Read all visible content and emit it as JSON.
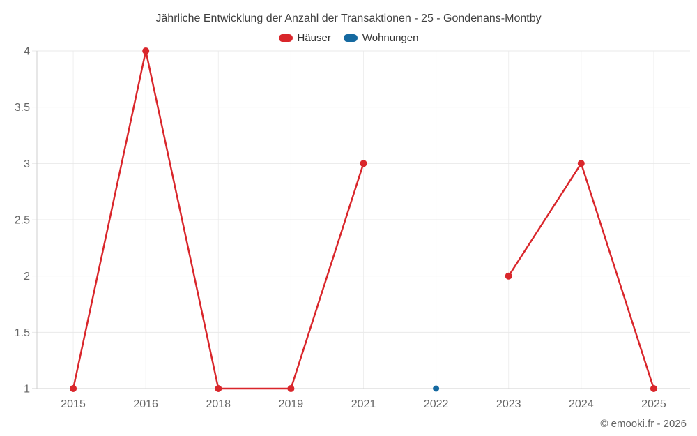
{
  "title": "Jährliche Entwicklung der Anzahl der Transaktionen - 25 - Gondenans-Montby",
  "legend": {
    "items": [
      {
        "label": "Häuser",
        "color": "#d9262b"
      },
      {
        "label": "Wohnungen",
        "color": "#1569a0"
      }
    ]
  },
  "copyright": "© emooki.fr - 2026",
  "colors": {
    "grid": "#e9e9e9",
    "grid_vertical": "#efefef",
    "axis": "#cfcfcf",
    "tick_label": "#666666",
    "title": "#3f3f3f",
    "legend_text": "#333333",
    "background": "#ffffff",
    "series_haeuser": "#d9262b",
    "series_wohnungen": "#1569a0"
  },
  "chart_data": {
    "type": "line",
    "title": "Jährliche Entwicklung der Anzahl der Transaktionen - 25 - Gondenans-Montby",
    "categories": [
      "2015",
      "2016",
      "2018",
      "2019",
      "2021",
      "2022",
      "2023",
      "2024",
      "2025"
    ],
    "series": [
      {
        "name": "Häuser",
        "color": "#d9262b",
        "values": [
          1,
          4,
          1,
          1,
          3,
          null,
          2,
          3,
          1
        ]
      },
      {
        "name": "Wohnungen",
        "color": "#1569a0",
        "values": [
          null,
          null,
          null,
          null,
          null,
          1,
          null,
          null,
          null
        ]
      }
    ],
    "xlabel": "",
    "ylabel": "",
    "ylim": [
      1,
      4
    ],
    "yticks": [
      1,
      1.5,
      2,
      2.5,
      3,
      3.5,
      4
    ],
    "ytick_labels": [
      "1",
      "1.5",
      "2",
      "2.5",
      "3",
      "3.5",
      "4"
    ],
    "grid": true,
    "legend_position": "top"
  }
}
